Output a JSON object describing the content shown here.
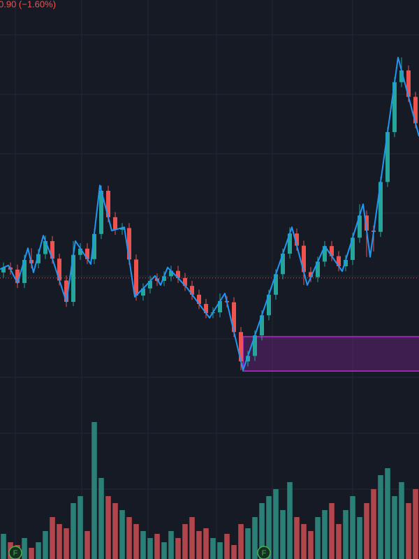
{
  "header": {
    "change": "0.90 (−1.60%)",
    "color": "#ef5350"
  },
  "chart_data": {
    "type": "candlestick",
    "ylim": [
      0,
      100
    ],
    "up_color": "#26a69a",
    "down_color": "#ef5350",
    "open": [
      35.0,
      36.2,
      35.7,
      32.5,
      38.0,
      37.2,
      39.4,
      42.5,
      38.3,
      33.1,
      28.0,
      39.2,
      40.7,
      38.2,
      44.2,
      54.5,
      48.2,
      45.2,
      45.6,
      38.1,
      29.5,
      31.2,
      33.6,
      33.0,
      34.1,
      35.4,
      33.7,
      31.8,
      29.7,
      27.5,
      25.3,
      25.5,
      28.2,
      27.9,
      20.8,
      13.8,
      15.1,
      20.0,
      24.8,
      29.7,
      34.6,
      39.5,
      44.3,
      41.4,
      35.1,
      33.9,
      37.6,
      41.3,
      38.9,
      36.5,
      38.0,
      43.3,
      48.6,
      45.0,
      44.7,
      56.6,
      68.5,
      80.4,
      83.2,
      76.9
    ],
    "high": [
      37.4,
      37.4,
      36.9,
      39.2,
      40.8,
      40.6,
      43.8,
      43.7,
      39.5,
      34.3,
      42.5,
      42.0,
      42.0,
      45.4,
      55.8,
      55.7,
      49.4,
      46.8,
      46.8,
      39.3,
      32.4,
      34.2,
      34.8,
      35.3,
      36.6,
      36.6,
      34.9,
      33.0,
      30.9,
      28.7,
      26.7,
      30.0,
      29.4,
      29.1,
      22.0,
      16.3,
      21.2,
      26.0,
      30.9,
      35.8,
      40.7,
      45.8,
      45.5,
      42.6,
      36.3,
      38.8,
      42.5,
      42.5,
      40.1,
      39.2,
      44.5,
      51.3,
      49.8,
      46.2,
      57.8,
      69.7,
      81.6,
      86.3,
      84.4,
      78.1
    ],
    "low": [
      33.8,
      34.5,
      31.3,
      31.3,
      36.0,
      36.0,
      38.2,
      37.1,
      31.9,
      26.8,
      27.0,
      38.0,
      37.0,
      37.0,
      43.0,
      47.0,
      44.0,
      44.0,
      36.9,
      28.3,
      28.3,
      30.0,
      31.8,
      31.8,
      32.9,
      32.5,
      30.6,
      28.5,
      26.3,
      24.1,
      24.1,
      24.3,
      26.7,
      19.6,
      11.7,
      12.6,
      13.9,
      18.8,
      23.6,
      28.5,
      33.4,
      38.3,
      40.2,
      32.0,
      32.7,
      32.7,
      36.4,
      37.7,
      35.3,
      35.3,
      36.8,
      42.1,
      38.7,
      40.0,
      43.5,
      55.4,
      67.3,
      79.2,
      75.7,
      69.4
    ],
    "close": [
      36.2,
      35.7,
      32.5,
      38.0,
      37.2,
      39.4,
      42.5,
      38.3,
      33.1,
      28.0,
      39.2,
      40.7,
      38.2,
      44.2,
      54.5,
      48.2,
      45.2,
      45.6,
      38.1,
      29.5,
      31.2,
      33.0,
      33.0,
      34.1,
      35.4,
      33.7,
      31.8,
      29.7,
      27.5,
      25.3,
      25.5,
      28.2,
      27.9,
      20.8,
      13.8,
      15.1,
      20.0,
      24.8,
      29.7,
      34.6,
      39.5,
      44.3,
      41.4,
      35.1,
      33.9,
      37.6,
      41.3,
      38.9,
      36.5,
      38.0,
      43.3,
      48.6,
      45.0,
      44.7,
      56.6,
      68.5,
      80.4,
      83.2,
      76.9,
      70.6
    ],
    "zigzag": {
      "color": "#2196f3",
      "x": [
        -0.5,
        0.7,
        2,
        3.5,
        4.3,
        5.7,
        7,
        9,
        10.3,
        12.5,
        13.8,
        15.5,
        17.3,
        18.8,
        20.3,
        21.7,
        22.5,
        23.5,
        25,
        26.3,
        29.5,
        31.7,
        34.3,
        41.3,
        43.5,
        46,
        48.5,
        51.5,
        52.5,
        56.5,
        59.5
      ],
      "values": [
        35.8,
        36.7,
        32.5,
        40.8,
        35,
        43.8,
        38.3,
        28,
        42.5,
        37,
        55.8,
        45,
        45.8,
        29.2,
        31.7,
        34.2,
        32,
        36.2,
        33.7,
        31.3,
        24.2,
        30,
        11.7,
        45.8,
        32,
        41.3,
        35.3,
        51.3,
        38.7,
        86.3,
        67.5
      ]
    },
    "price_line": {
      "value": 33.7,
      "color": "#ef5350"
    },
    "zone": {
      "start": 34.3,
      "low": 11.5,
      "high": 19.7,
      "color": "#9c27b0"
    },
    "volume": {
      "ylim": [
        0,
        100
      ],
      "up_color": "#2a7f76",
      "down_color": "#b0464b",
      "values": [
        18,
        12,
        10,
        15,
        8,
        12,
        20,
        30,
        25,
        22,
        40,
        45,
        20,
        98,
        58,
        45,
        40,
        35,
        30,
        25,
        20,
        15,
        18,
        12,
        20,
        15,
        25,
        30,
        20,
        22,
        15,
        12,
        18,
        10,
        25,
        22,
        30,
        40,
        45,
        50,
        35,
        55,
        30,
        25,
        20,
        30,
        35,
        40,
        25,
        35,
        45,
        30,
        40,
        50,
        60,
        65,
        45,
        55,
        40,
        50
      ]
    },
    "markers": {
      "color": "#4caf50",
      "items": [
        {
          "x": 1.7,
          "label": "F"
        },
        {
          "x": 37.3,
          "label": "F"
        }
      ]
    }
  }
}
